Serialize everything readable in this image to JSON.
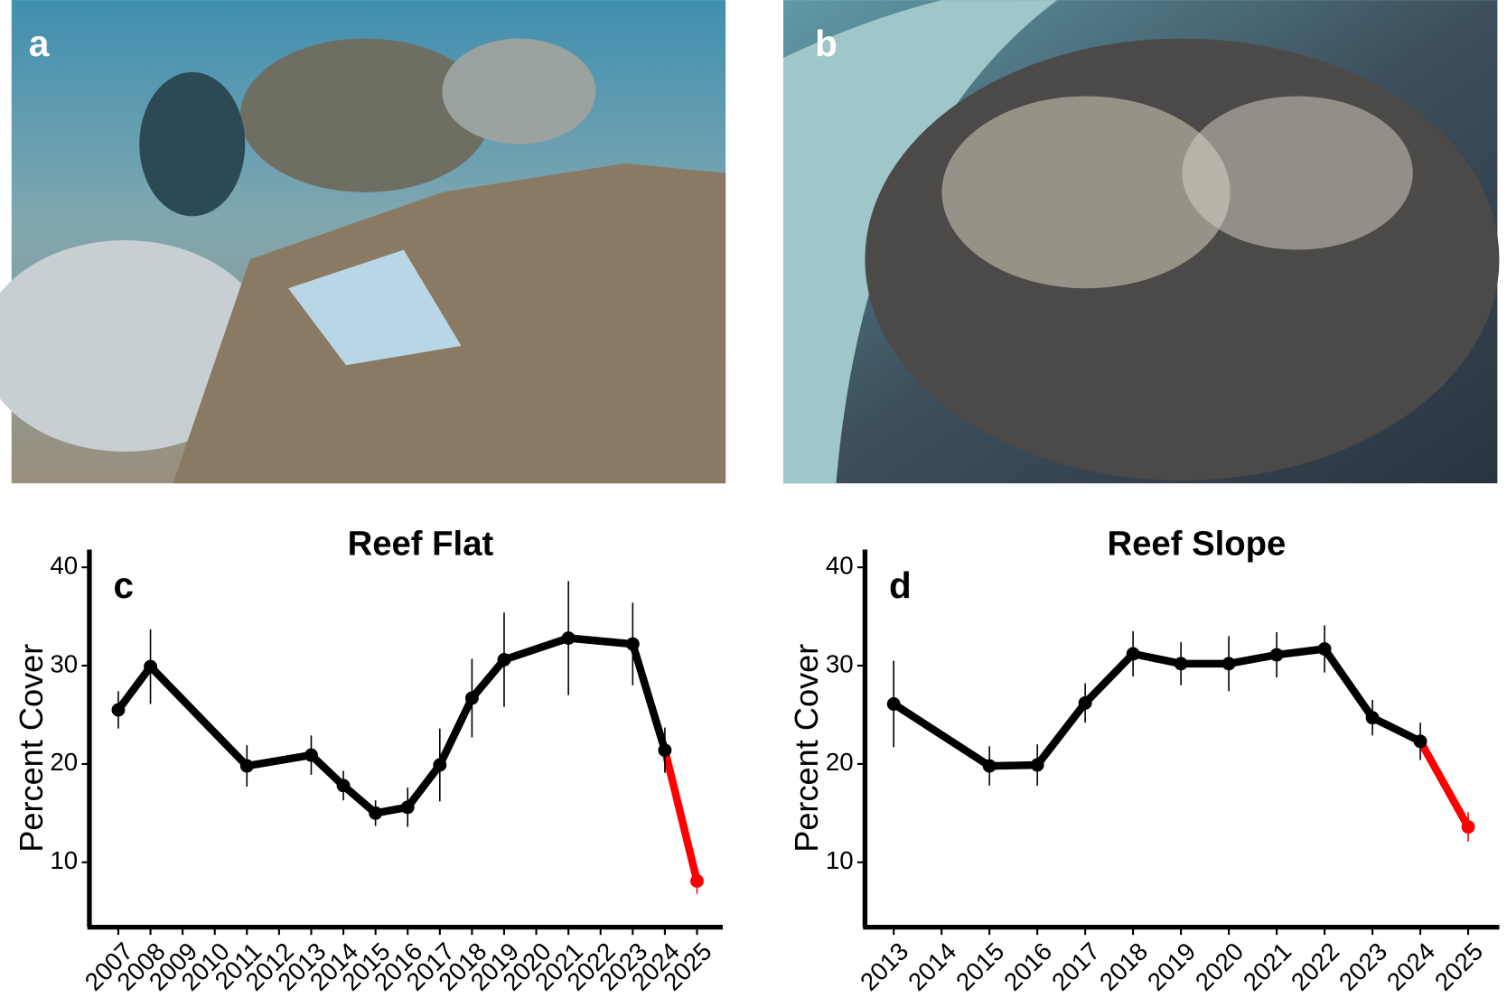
{
  "photos": [
    {
      "label": "a"
    },
    {
      "label": "b"
    }
  ],
  "chart_data": [
    {
      "type": "line",
      "panel_label": "c",
      "title": "Reef Flat",
      "y_label": "Percent Cover",
      "x": [
        2007,
        2008,
        2011,
        2013,
        2014,
        2015,
        2016,
        2017,
        2018,
        2019,
        2021,
        2023,
        2024,
        2025
      ],
      "values": [
        25.5,
        29.9,
        19.8,
        20.9,
        17.8,
        15.0,
        15.6,
        19.9,
        26.7,
        30.6,
        32.8,
        32.2,
        21.4,
        8.1
      ],
      "errors": [
        1.9,
        3.8,
        2.1,
        2.0,
        1.5,
        1.3,
        2.0,
        3.7,
        4.0,
        4.8,
        5.8,
        4.2,
        2.3,
        1.3
      ],
      "point_colors": [
        "#000000",
        "#000000",
        "#000000",
        "#000000",
        "#000000",
        "#000000",
        "#000000",
        "#000000",
        "#000000",
        "#000000",
        "#000000",
        "#000000",
        "#000000",
        "#ff0000"
      ],
      "xlim": [
        2006.1,
        2025.8
      ],
      "xticks": [
        2007,
        2008,
        2009,
        2010,
        2011,
        2012,
        2013,
        2014,
        2015,
        2016,
        2017,
        2018,
        2019,
        2020,
        2021,
        2022,
        2023,
        2024,
        2025
      ],
      "ylim": [
        3.4,
        41.8
      ],
      "yticks": [
        10,
        20,
        30,
        40
      ]
    },
    {
      "type": "line",
      "panel_label": "d",
      "title": "Reef Slope",
      "y_label": "Percent Cover",
      "x": [
        2013,
        2015,
        2016,
        2017,
        2018,
        2019,
        2020,
        2021,
        2022,
        2023,
        2024,
        2025
      ],
      "values": [
        26.1,
        19.8,
        19.9,
        26.2,
        31.2,
        30.2,
        30.2,
        31.1,
        31.7,
        24.7,
        22.3,
        13.6
      ],
      "errors": [
        4.4,
        2.0,
        2.1,
        2.0,
        2.3,
        2.2,
        2.8,
        2.3,
        2.4,
        1.8,
        1.9,
        1.5
      ],
      "point_colors": [
        "#000000",
        "#000000",
        "#000000",
        "#000000",
        "#000000",
        "#000000",
        "#000000",
        "#000000",
        "#000000",
        "#000000",
        "#000000",
        "#ff0000"
      ],
      "xlim": [
        2012.4,
        2025.65
      ],
      "xticks": [
        2013,
        2014,
        2015,
        2016,
        2017,
        2018,
        2019,
        2020,
        2021,
        2022,
        2023,
        2024,
        2025
      ],
      "ylim": [
        3.4,
        41.8
      ],
      "yticks": [
        10,
        20,
        30,
        40
      ]
    }
  ]
}
